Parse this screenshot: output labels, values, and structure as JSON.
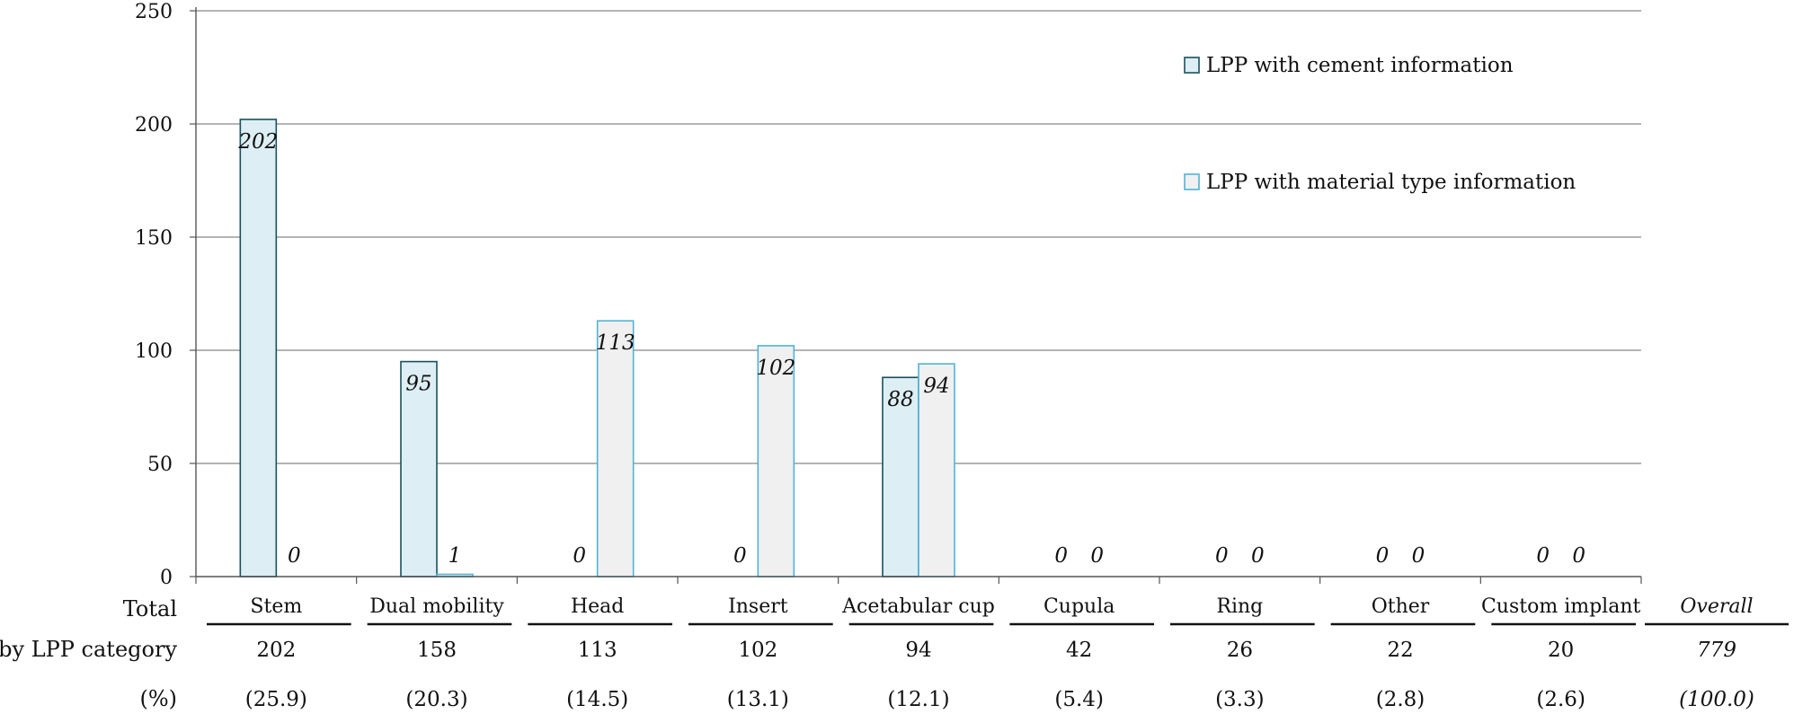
{
  "chart_data": {
    "type": "bar",
    "categories": [
      "Stem",
      "Dual mobility",
      "Head",
      "Insert",
      "Acetabular cup",
      "Cupula",
      "Ring",
      "Other",
      "Custom implant"
    ],
    "series": [
      {
        "name": "LPP with cement information",
        "values": [
          202,
          95,
          0,
          0,
          88,
          0,
          0,
          0,
          0
        ]
      },
      {
        "name": "LPP with material type information",
        "values": [
          0,
          1,
          113,
          102,
          94,
          0,
          0,
          0,
          0
        ]
      }
    ],
    "y_ticks": [
      "0",
      "50",
      "100",
      "150",
      "200",
      "250"
    ],
    "ylim": [
      0,
      250
    ],
    "grid": true,
    "legend_position": "top-right",
    "data_labels": true,
    "colors": {
      "series1_fill": "#ddeff4",
      "series1_stroke": "#1b4f5f",
      "series2_fill": "#f0f0f0",
      "series2_stroke": "#4fb4d6",
      "grid": "#888888",
      "axis": "#555555"
    },
    "table": {
      "row_label_lines": [
        "Total",
        "by LPP category"
      ],
      "pct_label": "(%)",
      "totals": [
        "202",
        "158",
        "113",
        "102",
        "94",
        "42",
        "26",
        "22",
        "20"
      ],
      "percents": [
        "(25.9)",
        "(20.3)",
        "(14.5)",
        "(13.1)",
        "(12.1)",
        "(5.4)",
        "(3.3)",
        "(2.8)",
        "(2.6)"
      ],
      "overall_label": "Overall",
      "overall_total": "779",
      "overall_percent": "(100.0)"
    }
  }
}
